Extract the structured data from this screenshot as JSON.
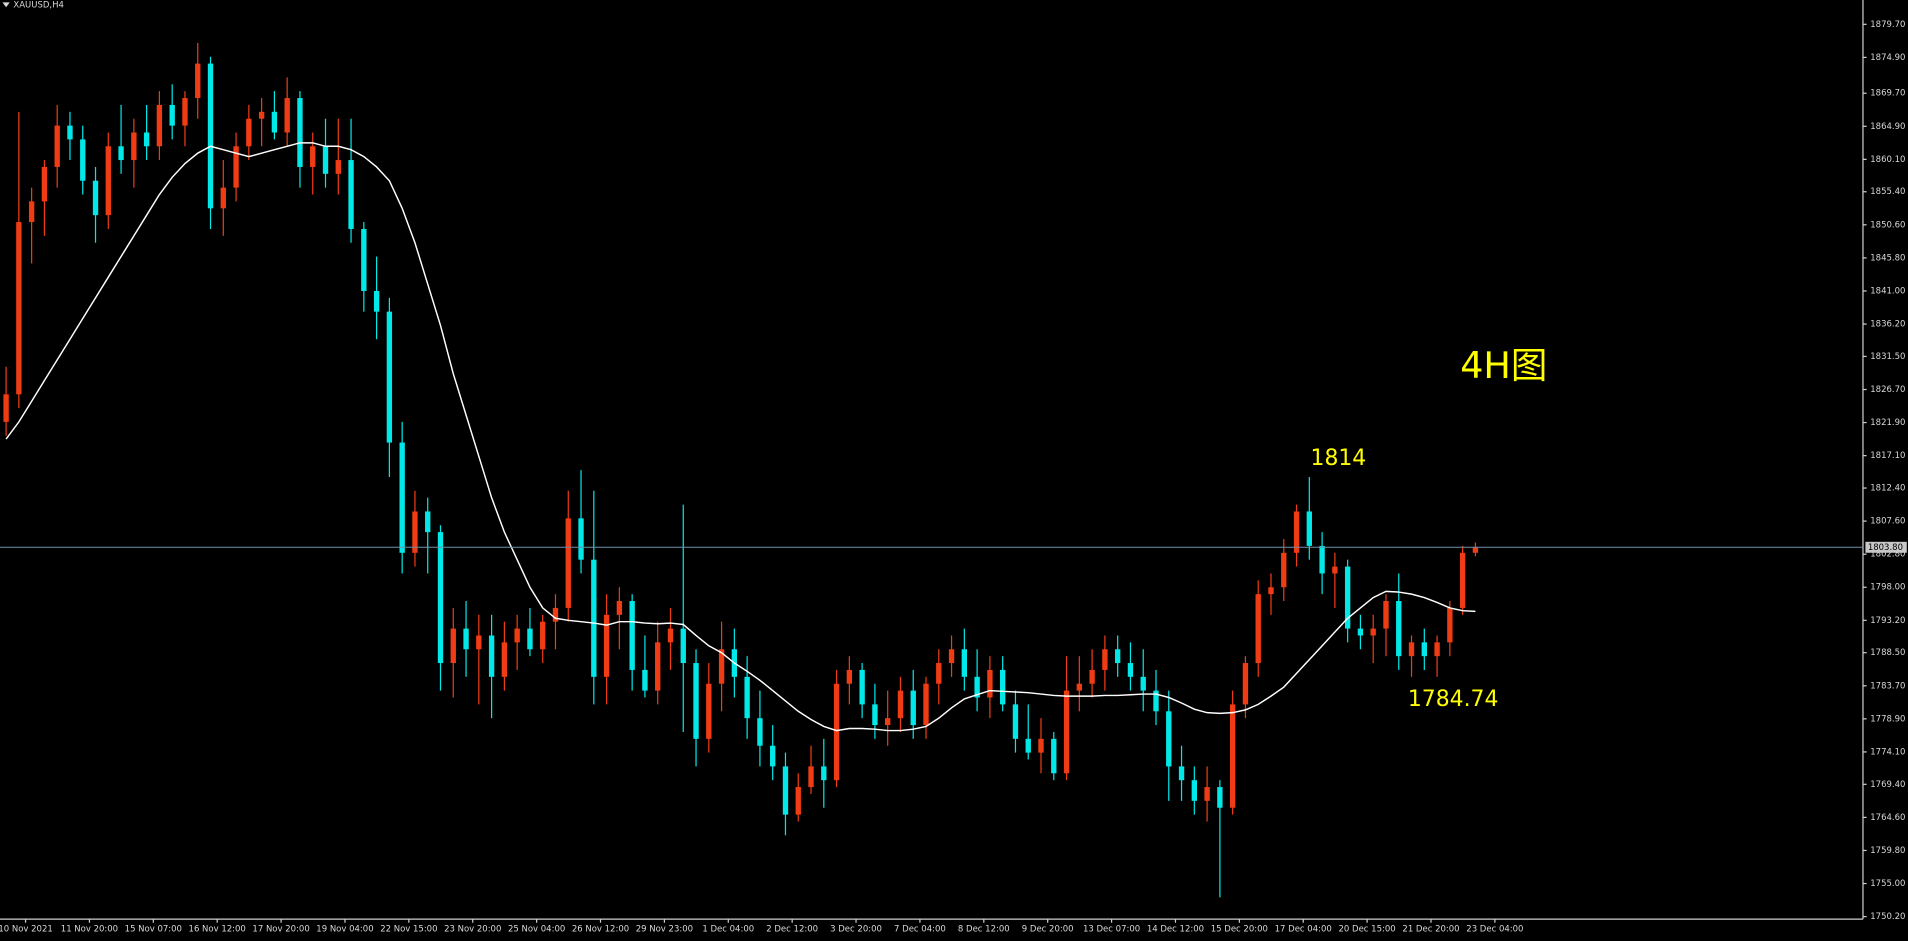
{
  "chart_data": {
    "type": "candlestick",
    "title": "XAUUSD,H4",
    "up_color": "#f03c14",
    "down_color": "#00e8e8",
    "ylim": [
      1749.84,
      1883.23
    ],
    "yticks": [
      {
        "value": 1879.7,
        "label": "1879.70"
      },
      {
        "value": 1874.9,
        "label": "1874.90"
      },
      {
        "value": 1869.7,
        "label": "1869.70"
      },
      {
        "value": 1864.9,
        "label": "1864.90"
      },
      {
        "value": 1860.1,
        "label": "1860.10"
      },
      {
        "value": 1855.4,
        "label": "1855.40"
      },
      {
        "value": 1850.6,
        "label": "1850.60"
      },
      {
        "value": 1845.8,
        "label": "1845.80"
      },
      {
        "value": 1841,
        "label": "1841.00"
      },
      {
        "value": 1836.2,
        "label": "1836.20"
      },
      {
        "value": 1831.5,
        "label": "1831.50"
      },
      {
        "value": 1826.7,
        "label": "1826.70"
      },
      {
        "value": 1821.9,
        "label": "1821.90"
      },
      {
        "value": 1817.1,
        "label": "1817.10"
      },
      {
        "value": 1812.4,
        "label": "1812.40"
      },
      {
        "value": 1807.6,
        "label": "1807.60"
      },
      {
        "value": 1802.8,
        "label": "1802.80"
      },
      {
        "value": 1798,
        "label": "1798.00"
      },
      {
        "value": 1793.2,
        "label": "1793.20"
      },
      {
        "value": 1788.5,
        "label": "1788.50"
      },
      {
        "value": 1783.7,
        "label": "1783.70"
      },
      {
        "value": 1778.9,
        "label": "1778.90"
      },
      {
        "value": 1774.1,
        "label": "1774.10"
      },
      {
        "value": 1769.4,
        "label": "1769.40"
      },
      {
        "value": 1764.6,
        "label": "1764.60"
      },
      {
        "value": 1759.8,
        "label": "1759.80"
      },
      {
        "value": 1755,
        "label": "1755.00"
      },
      {
        "value": 1750.2,
        "label": "1750.20"
      }
    ],
    "last_price": {
      "value": 1803.8,
      "label": "1803.80"
    },
    "x_labels": [
      "10 Nov 2021",
      "11 Nov 20:00",
      "15 Nov 07:00",
      "16 Nov 12:00",
      "17 Nov 20:00",
      "19 Nov 04:00",
      "22 Nov 15:00",
      "23 Nov 20:00",
      "25 Nov 04:00",
      "26 Nov 12:00",
      "29 Nov 23:00",
      "1 Dec 04:00",
      "2 Dec 12:00",
      "3 Dec 20:00",
      "7 Dec 04:00",
      "8 Dec 12:00",
      "9 Dec 20:00",
      "13 Dec 07:00",
      "14 Dec 12:00",
      "15 Dec 20:00",
      "17 Dec 04:00",
      "20 Dec 15:00",
      "21 Dec 20:00",
      "23 Dec 04:00"
    ],
    "ohlc": [
      [
        1822,
        1830,
        1820,
        1826
      ],
      [
        1826,
        1867,
        1824,
        1851
      ],
      [
        1851,
        1856,
        1845,
        1854
      ],
      [
        1854,
        1860,
        1849,
        1859
      ],
      [
        1859,
        1868,
        1856,
        1865
      ],
      [
        1865,
        1867,
        1860,
        1863
      ],
      [
        1863,
        1865,
        1855,
        1857
      ],
      [
        1857,
        1859,
        1848,
        1852
      ],
      [
        1852,
        1864,
        1850,
        1862
      ],
      [
        1862,
        1868,
        1858,
        1860
      ],
      [
        1860,
        1866,
        1856,
        1864
      ],
      [
        1864,
        1868,
        1860,
        1862
      ],
      [
        1862,
        1870,
        1860,
        1868
      ],
      [
        1868,
        1871,
        1863,
        1865
      ],
      [
        1865,
        1870,
        1862,
        1869
      ],
      [
        1869,
        1877,
        1866,
        1874
      ],
      [
        1874,
        1875,
        1850,
        1853
      ],
      [
        1853,
        1860,
        1849,
        1856
      ],
      [
        1856,
        1864,
        1854,
        1862
      ],
      [
        1862,
        1868,
        1860,
        1866
      ],
      [
        1866,
        1869,
        1862,
        1867
      ],
      [
        1867,
        1870,
        1863,
        1864
      ],
      [
        1864,
        1872,
        1862,
        1869
      ],
      [
        1869,
        1870,
        1856,
        1859
      ],
      [
        1859,
        1864,
        1855,
        1862
      ],
      [
        1862,
        1866,
        1856,
        1858
      ],
      [
        1858,
        1866,
        1855,
        1860
      ],
      [
        1860,
        1866,
        1848,
        1850
      ],
      [
        1850,
        1851,
        1838,
        1841
      ],
      [
        1841,
        1846,
        1834,
        1838
      ],
      [
        1838,
        1840,
        1814,
        1819
      ],
      [
        1819,
        1822,
        1800,
        1803
      ],
      [
        1803,
        1812,
        1801,
        1809
      ],
      [
        1809,
        1811,
        1800,
        1806
      ],
      [
        1806,
        1807,
        1783,
        1787
      ],
      [
        1787,
        1795,
        1782,
        1792
      ],
      [
        1792,
        1796,
        1785,
        1789
      ],
      [
        1789,
        1794,
        1781,
        1791
      ],
      [
        1791,
        1794,
        1779,
        1785
      ],
      [
        1785,
        1793,
        1783,
        1790
      ],
      [
        1790,
        1794,
        1786,
        1792
      ],
      [
        1792,
        1795,
        1788,
        1789
      ],
      [
        1789,
        1794,
        1787,
        1793
      ],
      [
        1793,
        1797,
        1789,
        1795
      ],
      [
        1795,
        1812,
        1793,
        1808
      ],
      [
        1808,
        1815,
        1800,
        1802
      ],
      [
        1802,
        1812,
        1781,
        1785
      ],
      [
        1785,
        1797,
        1781,
        1794
      ],
      [
        1794,
        1798,
        1789,
        1796
      ],
      [
        1796,
        1797,
        1783,
        1786
      ],
      [
        1786,
        1791,
        1782,
        1783
      ],
      [
        1783,
        1793,
        1781,
        1790
      ],
      [
        1790,
        1795,
        1786,
        1792
      ],
      [
        1792,
        1810,
        1777,
        1787
      ],
      [
        1787,
        1789,
        1772,
        1776
      ],
      [
        1776,
        1787,
        1774,
        1784
      ],
      [
        1784,
        1793,
        1780,
        1789
      ],
      [
        1789,
        1792,
        1782,
        1785
      ],
      [
        1785,
        1788,
        1776,
        1779
      ],
      [
        1779,
        1783,
        1772,
        1775
      ],
      [
        1775,
        1778,
        1770,
        1772
      ],
      [
        1772,
        1774,
        1762,
        1765
      ],
      [
        1765,
        1771,
        1764,
        1769
      ],
      [
        1769,
        1775,
        1768,
        1772
      ],
      [
        1772,
        1776,
        1766,
        1770
      ],
      [
        1770,
        1786,
        1769,
        1784
      ],
      [
        1784,
        1788,
        1781,
        1786
      ],
      [
        1786,
        1787,
        1779,
        1781
      ],
      [
        1781,
        1784,
        1776,
        1778
      ],
      [
        1778,
        1783,
        1775,
        1779
      ],
      [
        1779,
        1785,
        1777,
        1783
      ],
      [
        1783,
        1786,
        1776,
        1778
      ],
      [
        1778,
        1785,
        1776,
        1784
      ],
      [
        1784,
        1789,
        1781,
        1787
      ],
      [
        1787,
        1791,
        1785,
        1789
      ],
      [
        1789,
        1792,
        1783,
        1785
      ],
      [
        1785,
        1789,
        1780,
        1782
      ],
      [
        1782,
        1788,
        1779,
        1786
      ],
      [
        1786,
        1788,
        1780,
        1781
      ],
      [
        1781,
        1783,
        1774,
        1776
      ],
      [
        1776,
        1781,
        1773,
        1774
      ],
      [
        1774,
        1779,
        1771,
        1776
      ],
      [
        1776,
        1777,
        1770,
        1771
      ],
      [
        1771,
        1788,
        1770,
        1783
      ],
      [
        1783,
        1788,
        1780,
        1784
      ],
      [
        1784,
        1789,
        1782,
        1786
      ],
      [
        1786,
        1791,
        1783,
        1789
      ],
      [
        1789,
        1791,
        1785,
        1787
      ],
      [
        1787,
        1790,
        1783,
        1785
      ],
      [
        1785,
        1789,
        1780,
        1783
      ],
      [
        1783,
        1786,
        1778,
        1780
      ],
      [
        1780,
        1783,
        1767,
        1772
      ],
      [
        1772,
        1775,
        1767,
        1770
      ],
      [
        1770,
        1772,
        1765,
        1767
      ],
      [
        1767,
        1772,
        1764,
        1769
      ],
      [
        1769,
        1770,
        1753,
        1766
      ],
      [
        1766,
        1783,
        1765,
        1781
      ],
      [
        1781,
        1788,
        1779,
        1787
      ],
      [
        1787,
        1799,
        1785,
        1797
      ],
      [
        1797,
        1800,
        1794,
        1798
      ],
      [
        1798,
        1805,
        1796,
        1803
      ],
      [
        1803,
        1810,
        1801,
        1809
      ],
      [
        1809,
        1814,
        1802,
        1804
      ],
      [
        1804,
        1806,
        1797,
        1800
      ],
      [
        1800,
        1803,
        1795,
        1801
      ],
      [
        1801,
        1802,
        1790,
        1792
      ],
      [
        1792,
        1794,
        1789,
        1791
      ],
      [
        1791,
        1794,
        1787,
        1792
      ],
      [
        1792,
        1797,
        1788,
        1796
      ],
      [
        1796,
        1800,
        1786,
        1788
      ],
      [
        1788,
        1791,
        1785,
        1790
      ],
      [
        1790,
        1792,
        1786,
        1788
      ],
      [
        1788,
        1791,
        1785,
        1790
      ],
      [
        1790,
        1796,
        1788,
        1795
      ],
      [
        1795,
        1804,
        1794,
        1803
      ],
      [
        1803,
        1804.5,
        1802.5,
        1803.8
      ]
    ],
    "ma": {
      "color": "#ffffff",
      "values": [
        1819.5,
        1822,
        1825,
        1828,
        1831,
        1834,
        1837,
        1840,
        1843,
        1846,
        1849,
        1852,
        1855,
        1857.5,
        1859.5,
        1861,
        1862,
        1861.5,
        1861,
        1860.5,
        1861,
        1861.5,
        1862,
        1862.5,
        1862.5,
        1862,
        1862,
        1861.5,
        1860.5,
        1859,
        1857,
        1853,
        1848,
        1842,
        1836,
        1829,
        1823,
        1817,
        1811,
        1806,
        1802,
        1798,
        1795,
        1793.5,
        1793.2,
        1793,
        1792.8,
        1792.5,
        1793,
        1793,
        1792.8,
        1792.7,
        1792.8,
        1792.6,
        1791,
        1789.5,
        1788.5,
        1787,
        1785.8,
        1784.5,
        1783,
        1781.5,
        1780,
        1778.8,
        1777.8,
        1777.2,
        1777.5,
        1777.5,
        1777.4,
        1777.2,
        1777.2,
        1777.4,
        1777.8,
        1779,
        1780.5,
        1781.8,
        1782.4,
        1783,
        1782.9,
        1782.8,
        1782.7,
        1782.5,
        1782.3,
        1782.2,
        1782.2,
        1782.2,
        1782.3,
        1782.3,
        1782.4,
        1782.5,
        1782.5,
        1782,
        1781.2,
        1780.3,
        1779.8,
        1779.7,
        1779.8,
        1780.2,
        1781,
        1782.2,
        1783.5,
        1785.5,
        1787.5,
        1789.5,
        1791.5,
        1793.5,
        1795,
        1796.5,
        1797.4,
        1797.3,
        1797,
        1796.5,
        1795.8,
        1795,
        1794.6,
        1794.5
      ]
    },
    "annotations": [
      {
        "text": "4H图"
      },
      {
        "text": "1814"
      },
      {
        "text": "1784.74"
      }
    ]
  }
}
